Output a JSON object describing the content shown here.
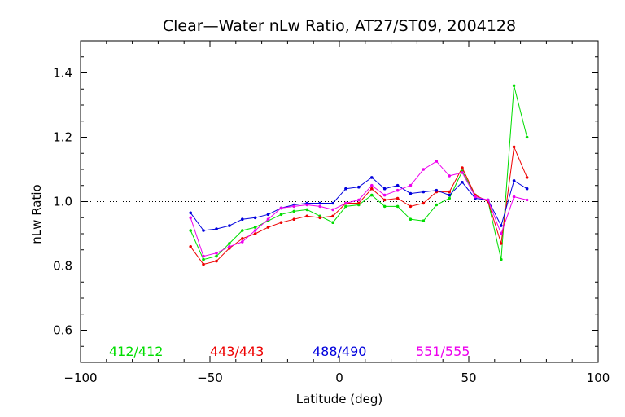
{
  "chart_data": {
    "type": "line",
    "title": "Clear—Water nLw Ratio, AT27/ST09, 2004128",
    "xlabel": "Latitude (deg)",
    "ylabel": "nLw Ratio",
    "xlim": [
      -100,
      100
    ],
    "ylim": [
      0.5,
      1.5
    ],
    "x_ticks": [
      -100,
      -50,
      0,
      50,
      100
    ],
    "y_ticks": [
      0.6,
      0.8,
      1.0,
      1.2,
      1.4
    ],
    "x_tick_labels": [
      "−100",
      "−50",
      "0",
      "50",
      "100"
    ],
    "y_tick_labels": [
      "0.6",
      "0.8",
      "1.0",
      "1.2",
      "1.4"
    ],
    "reference_line": {
      "y": 1.0,
      "style": "dotted"
    },
    "legend_placement": "bottom, inside plot, in series colors",
    "x": [
      -57.5,
      -52.5,
      -47.5,
      -42.5,
      -37.5,
      -32.5,
      -27.5,
      -22.5,
      -17.5,
      -12.5,
      -7.5,
      -2.5,
      2.5,
      7.5,
      12.5,
      17.5,
      22.5,
      27.5,
      32.5,
      37.5,
      42.5,
      47.5,
      52.5,
      57.5,
      62.5,
      67.5,
      72.5
    ],
    "series": [
      {
        "name": "412/412",
        "color": "#00dd00",
        "values": [
          0.91,
          0.82,
          0.83,
          0.87,
          0.91,
          0.92,
          0.94,
          0.96,
          0.97,
          0.975,
          0.955,
          0.935,
          0.985,
          0.99,
          1.02,
          0.985,
          0.985,
          0.945,
          0.94,
          0.99,
          1.01,
          1.095,
          1.02,
          1.0,
          0.82,
          1.36,
          1.2
        ]
      },
      {
        "name": "443/443",
        "color": "#ee0000",
        "values": [
          0.86,
          0.805,
          0.815,
          0.855,
          0.885,
          0.9,
          0.92,
          0.935,
          0.945,
          0.955,
          0.95,
          0.955,
          0.995,
          0.995,
          1.04,
          1.005,
          1.01,
          0.985,
          0.995,
          1.03,
          1.03,
          1.105,
          1.02,
          1.0,
          0.87,
          1.17,
          1.075
        ]
      },
      {
        "name": "488/490",
        "color": "#0000dd",
        "values": [
          0.965,
          0.91,
          0.915,
          0.925,
          0.945,
          0.95,
          0.96,
          0.98,
          0.99,
          0.995,
          0.995,
          0.995,
          1.04,
          1.045,
          1.075,
          1.04,
          1.05,
          1.025,
          1.03,
          1.035,
          1.02,
          1.06,
          1.01,
          1.005,
          0.925,
          1.065,
          1.04
        ]
      },
      {
        "name": "551/555",
        "color": "#ee00ee",
        "values": [
          0.95,
          0.83,
          0.84,
          0.86,
          0.875,
          0.91,
          0.945,
          0.98,
          0.985,
          0.99,
          0.985,
          0.975,
          0.995,
          1.005,
          1.05,
          1.02,
          1.035,
          1.05,
          1.1,
          1.125,
          1.08,
          1.09,
          1.015,
          1.005,
          0.9,
          1.015,
          1.005
        ]
      }
    ]
  }
}
